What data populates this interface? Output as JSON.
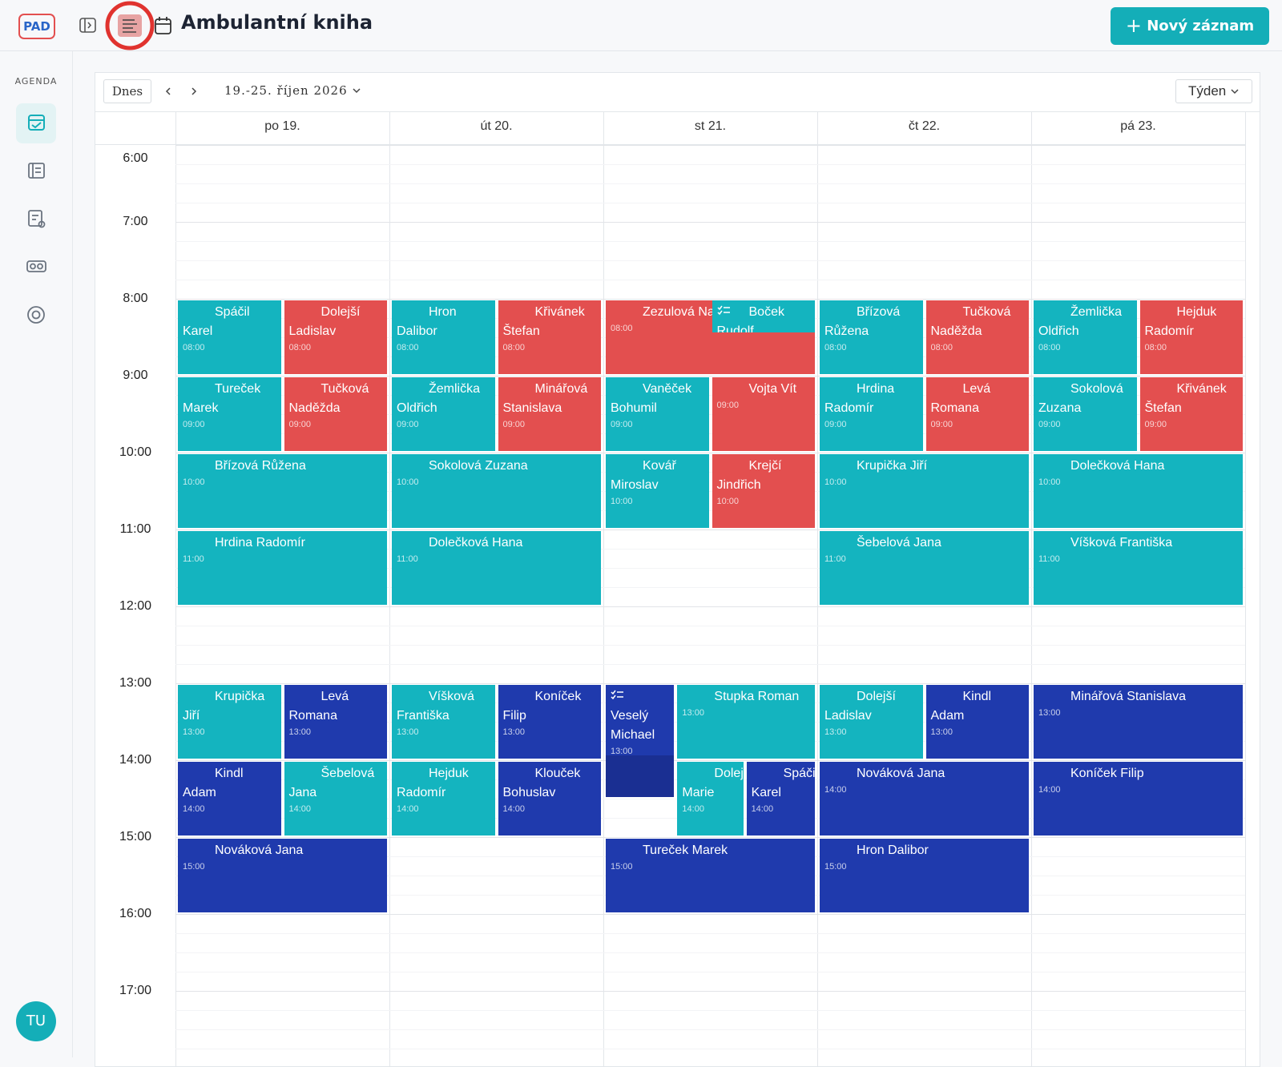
{
  "header": {
    "logo": "PAD",
    "title": "Ambulantní kniha",
    "new_button": "Nový záznam"
  },
  "sidebar": {
    "section": "AGENDA",
    "avatar": "TU"
  },
  "toolbar": {
    "today": "Dnes",
    "range": "19.-25. říjen 2026",
    "view": "Týden"
  },
  "hours": [
    "6:00",
    "7:00",
    "8:00",
    "9:00",
    "10:00",
    "11:00",
    "12:00",
    "13:00",
    "14:00",
    "15:00",
    "16:00",
    "17:00"
  ],
  "days": [
    {
      "label": "po 19.",
      "events": [
        {
          "time": "08:00",
          "name": "Spáčil Karel",
          "color": "#14b4bf"
        },
        {
          "time": "08:00",
          "name": "Dolejší Ladislav",
          "color": "#e34f4f"
        },
        {
          "time": "09:00",
          "name": "Tureček Marek",
          "color": "#14b4bf"
        },
        {
          "time": "09:00",
          "name": "Tučková Naděžda",
          "color": "#e34f4f"
        },
        {
          "time": "10:00",
          "name": "Břízová Růžena",
          "color": "#14b4bf"
        },
        {
          "time": "11:00",
          "name": "Hrdina Radomír",
          "color": "#14b4bf"
        },
        {
          "time": "13:00",
          "name": "Krupička Jiří",
          "color": "#14b4bf"
        },
        {
          "time": "13:00",
          "name": "Levá Romana",
          "color": "#1f3aad"
        },
        {
          "time": "14:00",
          "name": "Kindl Adam",
          "color": "#1f3aad"
        },
        {
          "time": "14:00",
          "name": "Šebelová Jana",
          "color": "#14b4bf"
        },
        {
          "time": "15:00",
          "name": "Nováková Jana",
          "color": "#1f3aad"
        }
      ]
    },
    {
      "label": "út 20.",
      "events": [
        {
          "time": "08:00",
          "name": "Hron Dalibor",
          "color": "#14b4bf"
        },
        {
          "time": "08:00",
          "name": "Křivánek Štefan",
          "color": "#e34f4f"
        },
        {
          "time": "09:00",
          "name": "Žemlička Oldřich",
          "color": "#14b4bf"
        },
        {
          "time": "09:00",
          "name": "Minářová Stanislava",
          "color": "#e34f4f"
        },
        {
          "time": "10:00",
          "name": "Sokolová Zuzana",
          "color": "#14b4bf"
        },
        {
          "time": "11:00",
          "name": "Dolečková Hana",
          "color": "#14b4bf"
        },
        {
          "time": "13:00",
          "name": "Víšková Františka",
          "color": "#14b4bf"
        },
        {
          "time": "13:00",
          "name": "Koníček Filip",
          "color": "#1f3aad"
        },
        {
          "time": "14:00",
          "name": "Hejduk Radomír",
          "color": "#14b4bf"
        },
        {
          "time": "14:00",
          "name": "Klouček Bohuslav",
          "color": "#1f3aad"
        }
      ]
    },
    {
      "label": "st 21.",
      "events": [
        {
          "time": "08:00",
          "name": "Zezulová Natálie",
          "color": "#e34f4f"
        },
        {
          "name": "Boček Rudolf",
          "color": "#14b4bf"
        },
        {
          "time": "09:00",
          "name": "Vaněček Bohumil",
          "color": "#14b4bf"
        },
        {
          "time": "09:00",
          "name": "Vojta Vít",
          "color": "#e34f4f"
        },
        {
          "time": "10:00",
          "name": "Kovář Miroslav",
          "color": "#14b4bf"
        },
        {
          "time": "10:00",
          "name": "Krejčí Jindřich",
          "color": "#e34f4f"
        },
        {
          "time": "13:00",
          "name": "Veselý Michael",
          "color": "#1f3aad"
        },
        {
          "time": "13:00",
          "name": "Stupka Roman",
          "color": "#14b4bf"
        },
        {
          "time": "14:00",
          "name": "Dolejší Marie",
          "color": "#14b4bf"
        },
        {
          "time": "14:00",
          "name": "Spáčil Karel",
          "color": "#1f3aad"
        },
        {
          "time": "15:00",
          "name": "Tureček Marek",
          "color": "#1f3aad"
        }
      ]
    },
    {
      "label": "čt 22.",
      "events": [
        {
          "time": "08:00",
          "name": "Břízová Růžena",
          "color": "#14b4bf"
        },
        {
          "time": "08:00",
          "name": "Tučková Naděžda",
          "color": "#e34f4f"
        },
        {
          "time": "09:00",
          "name": "Hrdina Radomír",
          "color": "#14b4bf"
        },
        {
          "time": "09:00",
          "name": "Levá Romana",
          "color": "#e34f4f"
        },
        {
          "time": "10:00",
          "name": "Krupička Jiří",
          "color": "#14b4bf"
        },
        {
          "time": "11:00",
          "name": "Šebelová Jana",
          "color": "#14b4bf"
        },
        {
          "time": "13:00",
          "name": "Dolejší Ladislav",
          "color": "#14b4bf"
        },
        {
          "time": "13:00",
          "name": "Kindl Adam",
          "color": "#1f3aad"
        },
        {
          "time": "14:00",
          "name": "Nováková Jana",
          "color": "#1f3aad"
        },
        {
          "time": "15:00",
          "name": "Hron Dalibor",
          "color": "#1f3aad"
        }
      ]
    },
    {
      "label": "pá 23.",
      "events": [
        {
          "time": "08:00",
          "name": "Žemlička Oldřich",
          "color": "#14b4bf"
        },
        {
          "time": "08:00",
          "name": "Hejduk Radomír",
          "color": "#e34f4f"
        },
        {
          "time": "09:00",
          "name": "Sokolová Zuzana",
          "color": "#14b4bf"
        },
        {
          "time": "09:00",
          "name": "Křivánek Štefan",
          "color": "#e34f4f"
        },
        {
          "time": "10:00",
          "name": "Dolečková Hana",
          "color": "#14b4bf"
        },
        {
          "time": "11:00",
          "name": "Víšková Františka",
          "color": "#14b4bf"
        },
        {
          "time": "13:00",
          "name": "Minářová Stanislava",
          "color": "#1f3aad"
        },
        {
          "time": "14:00",
          "name": "Koníček Filip",
          "color": "#1f3aad"
        }
      ]
    }
  ]
}
